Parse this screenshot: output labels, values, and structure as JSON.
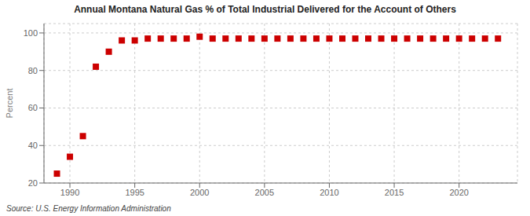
{
  "chart_data": {
    "type": "scatter",
    "title": "Annual Montana Natural Gas % of Total Industrial Delivered for the Account of Others",
    "ylabel": "Percent",
    "annotations": [
      "Source: U.S. Energy Information Administration"
    ],
    "x": [
      1989,
      1990,
      1991,
      1992,
      1993,
      1994,
      1995,
      1996,
      1997,
      1998,
      1999,
      2000,
      2001,
      2002,
      2003,
      2004,
      2005,
      2006,
      2007,
      2008,
      2009,
      2010,
      2011,
      2012,
      2013,
      2014,
      2015,
      2016,
      2017,
      2018,
      2019,
      2020,
      2021,
      2022,
      2023
    ],
    "values": [
      25,
      34,
      45,
      82,
      90,
      96,
      96,
      97,
      97,
      97,
      97,
      98,
      97,
      97,
      97,
      97,
      97,
      97,
      97,
      97,
      97,
      97,
      97,
      97,
      97,
      97,
      97,
      97,
      97,
      97,
      97,
      97,
      97,
      97,
      97
    ],
    "color": "#cc0000",
    "marker": "square",
    "xlim": [
      1988.0,
      2024.5
    ],
    "ylim": [
      20,
      105
    ],
    "xticks": [
      1990,
      1995,
      2000,
      2005,
      2010,
      2015,
      2020
    ],
    "yticks": [
      20,
      40,
      60,
      80,
      100
    ],
    "grid": true
  }
}
